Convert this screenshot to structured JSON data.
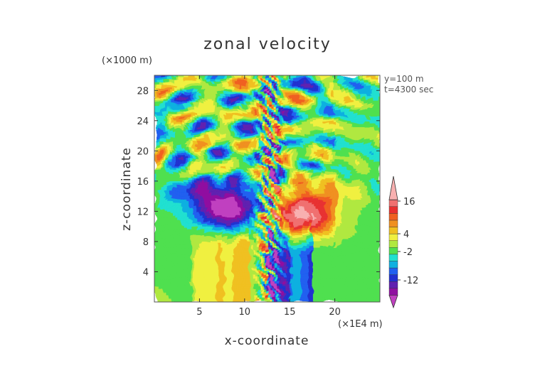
{
  "chart_data": {
    "type": "heatmap",
    "title": "zonal velocity",
    "xlabel": "x-coordinate",
    "ylabel": "z-coordinate",
    "x_unit": "(×1E4 m)",
    "y_unit": "(×1000 m)",
    "annotations": [
      "y=100 m",
      "t=4300 sec"
    ],
    "xlim": [
      0,
      25
    ],
    "ylim": [
      0,
      30
    ],
    "x_ticks": [
      5,
      10,
      15,
      20
    ],
    "y_ticks": [
      4,
      8,
      12,
      16,
      20,
      24,
      28
    ],
    "colorbar": {
      "tick_labels": [
        "16",
        "4",
        "-2",
        "-12"
      ],
      "colors": [
        "#c040c0",
        "#9010a0",
        "#6020b0",
        "#2030d0",
        "#2060f0",
        "#10b0e0",
        "#20e0d0",
        "#50e050",
        "#b0e840",
        "#f0f040",
        "#f0c020",
        "#f09020",
        "#f06020",
        "#e83030",
        "#f07070",
        "#f8b0b0"
      ]
    },
    "field_description_values": {
      "lower_left_band": -2,
      "lower_right_band": -2,
      "left_lobe_min": -16,
      "right_lobe_max": 18
    }
  }
}
